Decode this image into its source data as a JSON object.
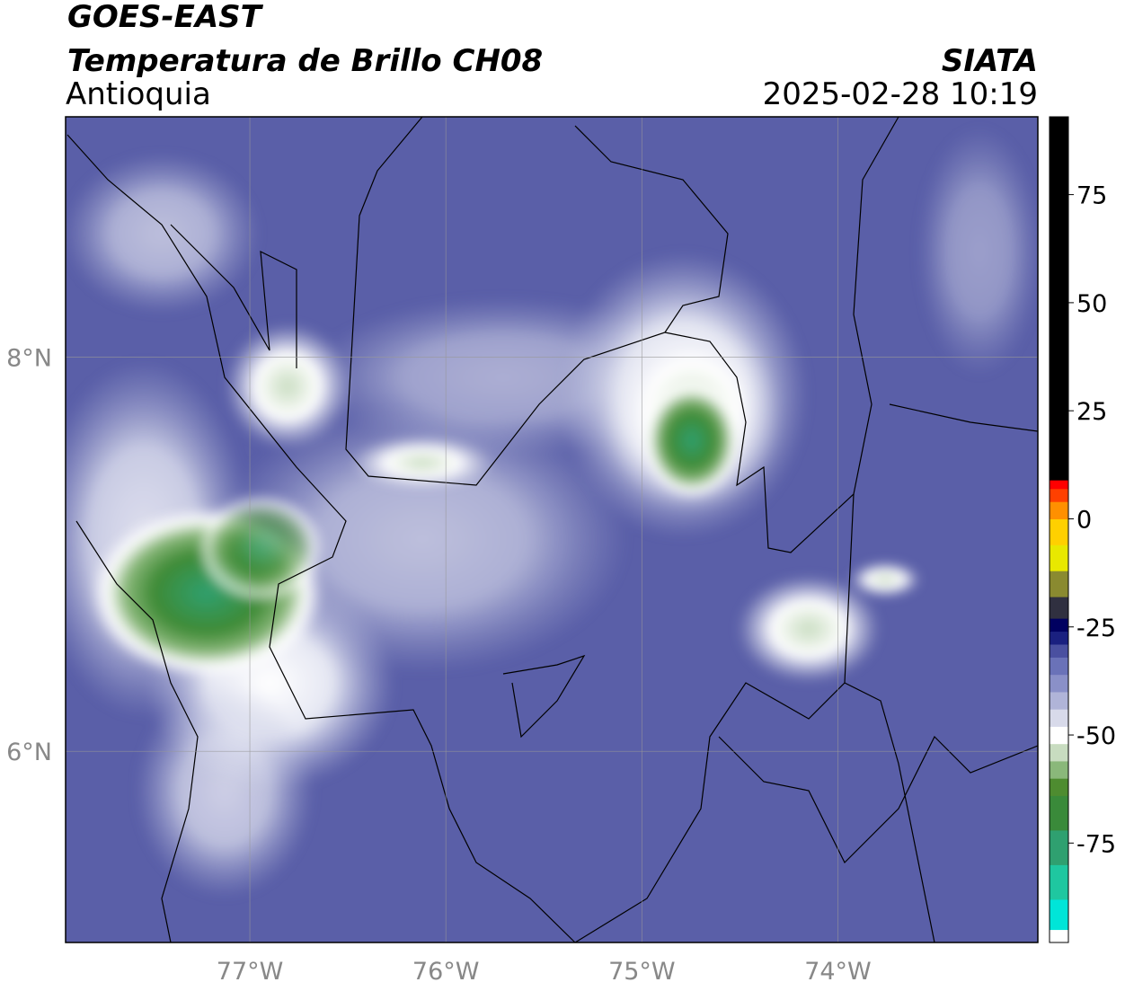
{
  "header": {
    "title": "GOES-EAST",
    "subtitle": "Temperatura de Brillo CH08",
    "region": "Antioquia",
    "source": "SIATA",
    "datetime": "2025-02-28 10:19"
  },
  "map": {
    "xlim": [
      -77.94,
      -72.98
    ],
    "ylim": [
      5.03,
      9.22
    ],
    "xticks": [
      {
        "value": -77,
        "label": "77°W"
      },
      {
        "value": -76,
        "label": "76°W"
      },
      {
        "value": -75,
        "label": "75°W"
      },
      {
        "value": -74,
        "label": "74°W"
      }
    ],
    "yticks": [
      {
        "value": 8,
        "label": "8°N"
      },
      {
        "value": 6,
        "label": "6°N"
      }
    ],
    "grid": true
  },
  "colorbar": {
    "lim": [
      -98,
      93
    ],
    "ticks": [
      75,
      50,
      25,
      0,
      -25,
      -50,
      -75
    ],
    "stops": [
      {
        "value": -98,
        "color": "#ffffff"
      },
      {
        "value": -95,
        "color": "#00e5d8"
      },
      {
        "value": -88,
        "color": "#1fc7a0"
      },
      {
        "value": -80,
        "color": "#2fa070"
      },
      {
        "value": -72,
        "color": "#3a8a3a"
      },
      {
        "value": -64,
        "color": "#4e8c30"
      },
      {
        "value": -60,
        "color": "#8ab87a"
      },
      {
        "value": -56,
        "color": "#c8dcc0"
      },
      {
        "value": -52,
        "color": "#ffffff"
      },
      {
        "value": -48,
        "color": "#d8daea"
      },
      {
        "value": -44,
        "color": "#b0b4d8"
      },
      {
        "value": -40,
        "color": "#8a90c8"
      },
      {
        "value": -36,
        "color": "#6a72b8"
      },
      {
        "value": -32,
        "color": "#4a50a0"
      },
      {
        "value": -29,
        "color": "#1a2080"
      },
      {
        "value": -26,
        "color": "#000060"
      },
      {
        "value": -23,
        "color": "#303040"
      },
      {
        "value": -18,
        "color": "#8a8a30"
      },
      {
        "value": -12,
        "color": "#e8e800"
      },
      {
        "value": -6,
        "color": "#ffd000"
      },
      {
        "value": 0,
        "color": "#ff9000"
      },
      {
        "value": 4,
        "color": "#ff4000"
      },
      {
        "value": 7,
        "color": "#ff0000"
      },
      {
        "value": 9,
        "color": "#000000"
      }
    ]
  }
}
